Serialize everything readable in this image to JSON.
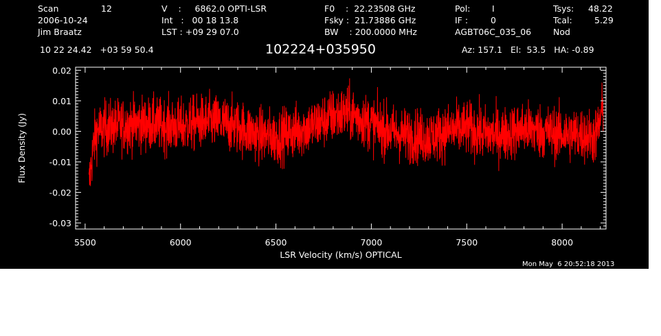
{
  "header": {
    "col1": [
      {
        "label": "Scan",
        "value": "12"
      },
      {
        "label": "2006-10-24",
        "value": ""
      },
      {
        "label": "Jim Braatz",
        "value": ""
      }
    ],
    "col2": [
      "V    :     6862.0 OPTI-LSR",
      "Int   :   00 18 13.8",
      "LST : +09 29 07.0"
    ],
    "col3": [
      "F0    :  22.23508 GHz",
      "Fsky :  21.73886 GHz",
      "BW    : 200.0000 MHz"
    ],
    "col4": [
      {
        "label": "Pol:",
        "value": "I"
      },
      {
        "label": "IF :",
        "value": "0"
      },
      {
        "label": "AGBT06C_035_06",
        "value": "Nod"
      }
    ],
    "col5": [
      {
        "label": "Tsys:",
        "value": "48.22"
      },
      {
        "label": "Tcal:",
        "value": "5.29"
      }
    ],
    "coords": "10 22 24.42   +03 59 50.4",
    "source": "102224+035950",
    "pointing": "Az: 157.1   El:  53.5   HA: -0.89",
    "timestamp": "Mon May  6 20:52:18 2013"
  },
  "chart_data": {
    "type": "line",
    "title": "102224+035950",
    "xlabel": "LSR Velocity (km/s) OPTICAL",
    "ylabel": "Flux Density (Jy)",
    "xlim": [
      5450,
      8230
    ],
    "ylim": [
      -0.032,
      0.021
    ],
    "xticks": [
      5500,
      6000,
      6500,
      7000,
      7500,
      8000
    ],
    "xtick_labels": [
      "5500",
      "6000",
      "6500",
      "7000",
      "7500",
      "8000"
    ],
    "yticks": [
      -0.03,
      -0.02,
      -0.01,
      0.0,
      0.01,
      0.02
    ],
    "ytick_labels": [
      "-0.03",
      "-0.02",
      "-0.01",
      "0.00",
      "0.01",
      "0.02"
    ],
    "grid": false,
    "line_color": "#ff0000",
    "axis_color": "#ffffff",
    "series": [
      {
        "x_start": 5520,
        "x_end": 8215,
        "noise_amplitude": 0.0045,
        "baseline": [
          [
            5520,
            -0.018
          ],
          [
            5530,
            -0.012
          ],
          [
            5545,
            -0.004
          ],
          [
            5560,
            0.0
          ],
          [
            5600,
            0.001
          ],
          [
            5700,
            0.002
          ],
          [
            5800,
            0.0025
          ],
          [
            5900,
            0.002
          ],
          [
            6000,
            0.0015
          ],
          [
            6100,
            0.003
          ],
          [
            6200,
            0.003
          ],
          [
            6300,
            0.0015
          ],
          [
            6400,
            -0.001
          ],
          [
            6500,
            -0.002
          ],
          [
            6600,
            0.0
          ],
          [
            6700,
            0.002
          ],
          [
            6800,
            0.005
          ],
          [
            6880,
            0.006
          ],
          [
            6950,
            0.004
          ],
          [
            7050,
            0.001
          ],
          [
            7150,
            -0.001
          ],
          [
            7300,
            -0.002
          ],
          [
            7400,
            0.0
          ],
          [
            7500,
            0.001
          ],
          [
            7600,
            -0.001
          ],
          [
            7700,
            -0.001
          ],
          [
            7800,
            0.001
          ],
          [
            7900,
            0.0
          ],
          [
            8000,
            -0.001
          ],
          [
            8100,
            -0.001
          ],
          [
            8170,
            -0.002
          ],
          [
            8190,
            0.001
          ],
          [
            8215,
            0.008
          ]
        ]
      }
    ]
  }
}
